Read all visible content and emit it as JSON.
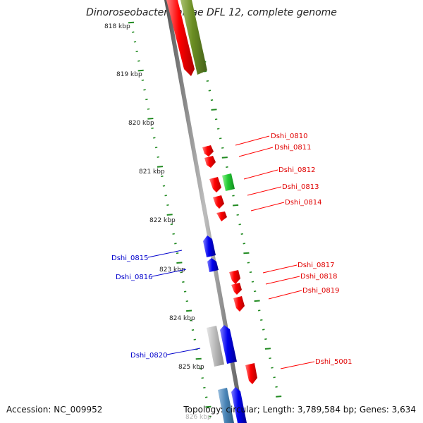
{
  "title": "Dinoroseobacter shibae DFL 12, complete genome",
  "footer": {
    "accession": "Accession: NC_009952",
    "stats": "Topology: circular; Length: 3,789,584 bp; Genes: 3,634"
  },
  "ticks": [
    "818 kbp",
    "819 kbp",
    "820 kbp",
    "821 kbp",
    "822 kbp",
    "823 kbp",
    "824 kbp",
    "825 kbp",
    "826 kbp"
  ],
  "colors": {
    "forward": "#ff0000",
    "reverse": "#0000ee",
    "olive": "#6b8e23",
    "green": "#22cc33",
    "grey": "#b8b8b8",
    "steel": "#4682b4",
    "tick": "#228b22",
    "backbone": "#888888"
  },
  "genes_right": [
    {
      "name": "Dshi_0810",
      "kind": "forward"
    },
    {
      "name": "Dshi_0811",
      "kind": "forward"
    },
    {
      "name": "Dshi_0812",
      "kind": "green"
    },
    {
      "name": "Dshi_0813",
      "kind": "forward"
    },
    {
      "name": "Dshi_0814",
      "kind": "forward"
    },
    {
      "name": "Dshi_0817",
      "kind": "forward"
    },
    {
      "name": "Dshi_0818",
      "kind": "forward"
    },
    {
      "name": "Dshi_0819",
      "kind": "forward"
    },
    {
      "name": "Dshi_5001",
      "kind": "forward"
    }
  ],
  "genes_left": [
    {
      "name": "Dshi_0815",
      "kind": "reverse"
    },
    {
      "name": "Dshi_0816",
      "kind": "reverse"
    },
    {
      "name": "Dshi_0820",
      "kind": "reverse"
    }
  ]
}
